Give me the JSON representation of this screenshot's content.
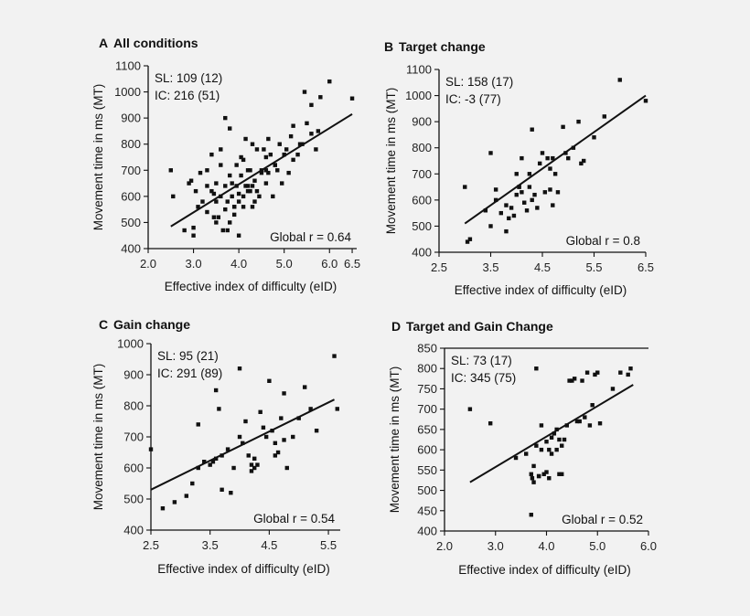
{
  "figure": {
    "y_axis_label": "Movement time in ms (MT)",
    "x_axis_label": "Effective index of difficulty (eID)"
  },
  "chart_data": [
    {
      "type": "scatter",
      "letter": "A",
      "title": "All conditions",
      "stats": [
        "SL: 109 (12)",
        "IC: 216 (51)"
      ],
      "global_r": "Global r = 0.64",
      "xlim": [
        2.0,
        6.6
      ],
      "ylim": [
        400,
        1100
      ],
      "xticks": [
        "2.0",
        "3.0",
        "4.0",
        "5.0",
        "6.0",
        "6.5"
      ],
      "xtick_values": [
        2.0,
        3.0,
        4.0,
        5.0,
        6.0,
        6.5
      ],
      "yticks": [
        400,
        500,
        600,
        700,
        800,
        900,
        1000,
        1100
      ],
      "fit": {
        "x": [
          2.5,
          6.5
        ],
        "y": [
          485,
          915
        ]
      },
      "x": [
        2.5,
        2.55,
        2.8,
        2.9,
        3.0,
        3.0,
        3.05,
        3.1,
        3.2,
        3.3,
        3.3,
        3.4,
        3.4,
        3.45,
        3.5,
        3.5,
        3.55,
        3.6,
        3.6,
        3.65,
        3.7,
        3.7,
        3.75,
        3.8,
        3.8,
        3.85,
        3.85,
        3.9,
        3.9,
        3.95,
        3.95,
        4.0,
        4.0,
        4.05,
        4.05,
        4.1,
        4.1,
        4.15,
        4.2,
        4.2,
        4.25,
        4.3,
        4.3,
        4.35,
        4.4,
        4.4,
        4.45,
        4.5,
        4.55,
        4.6,
        4.6,
        4.65,
        4.7,
        4.75,
        4.8,
        4.85,
        4.9,
        4.95,
        5.0,
        5.05,
        5.1,
        5.15,
        5.2,
        5.3,
        5.4,
        5.45,
        5.5,
        5.6,
        5.7,
        5.75,
        5.8,
        6.0,
        6.5,
        3.6,
        3.7,
        3.8,
        4.3,
        4.5,
        3.3,
        3.9,
        4.2,
        4.6,
        5.2,
        3.5,
        4.0,
        4.1,
        4.25,
        4.65,
        2.95,
        3.15,
        3.45,
        3.75,
        4.15,
        4.35,
        4.8,
        5.35,
        5.6
      ],
      "y": [
        700,
        600,
        470,
        650,
        480,
        450,
        620,
        560,
        580,
        540,
        700,
        620,
        760,
        610,
        580,
        650,
        520,
        720,
        600,
        470,
        550,
        640,
        580,
        680,
        500,
        650,
        600,
        560,
        530,
        720,
        640,
        610,
        580,
        680,
        750,
        600,
        560,
        820,
        700,
        640,
        620,
        800,
        640,
        660,
        620,
        780,
        600,
        700,
        780,
        750,
        650,
        690,
        760,
        600,
        720,
        700,
        800,
        650,
        760,
        780,
        690,
        830,
        740,
        760,
        800,
        1000,
        880,
        840,
        780,
        850,
        980,
        1040,
        975,
        780,
        900,
        860,
        560,
        690,
        640,
        560,
        620,
        700,
        870,
        500,
        450,
        740,
        700,
        820,
        660,
        690,
        520,
        470,
        640,
        580,
        720,
        800,
        950
      ]
    },
    {
      "type": "scatter",
      "letter": "B",
      "title": "Target change",
      "stats": [
        "SL: 158 (17)",
        "IC: -3 (77)"
      ],
      "global_r": "Global r = 0.8",
      "xlim": [
        2.5,
        6.5
      ],
      "ylim": [
        400,
        1100
      ],
      "xticks": [
        "2.5",
        "3.5",
        "4.5",
        "5.5",
        "6.5"
      ],
      "xtick_values": [
        2.5,
        3.5,
        4.5,
        5.5,
        6.5
      ],
      "yticks": [
        400,
        500,
        600,
        700,
        800,
        900,
        1000,
        1100
      ],
      "fit": {
        "x": [
          3.0,
          6.5
        ],
        "y": [
          510,
          1000
        ]
      },
      "x": [
        3.0,
        3.05,
        3.1,
        3.4,
        3.5,
        3.5,
        3.6,
        3.7,
        3.8,
        3.8,
        3.9,
        3.95,
        4.0,
        4.0,
        4.05,
        4.1,
        4.1,
        4.15,
        4.2,
        4.25,
        4.3,
        4.3,
        4.35,
        4.4,
        4.45,
        4.5,
        4.55,
        4.6,
        4.65,
        4.7,
        4.7,
        4.75,
        4.8,
        4.9,
        4.95,
        5.0,
        5.1,
        5.2,
        5.3,
        5.5,
        5.7,
        6.0,
        6.5,
        3.6,
        3.85,
        4.05,
        4.25,
        4.65,
        5.25
      ],
      "y": [
        650,
        440,
        450,
        560,
        780,
        500,
        640,
        550,
        580,
        480,
        570,
        540,
        700,
        620,
        650,
        760,
        630,
        590,
        560,
        650,
        600,
        870,
        620,
        570,
        740,
        780,
        630,
        760,
        640,
        580,
        760,
        700,
        630,
        880,
        780,
        760,
        800,
        900,
        750,
        840,
        920,
        1060,
        980,
        600,
        530,
        650,
        700,
        720,
        740
      ]
    },
    {
      "type": "scatter",
      "letter": "C",
      "title": "Gain change",
      "stats": [
        "SL: 95 (21)",
        "IC: 291 (89)"
      ],
      "global_r": "Global r = 0.54",
      "xlim": [
        2.5,
        5.7
      ],
      "ylim": [
        400,
        1000
      ],
      "xticks": [
        "2.5",
        "3.5",
        "4.5",
        "5.5"
      ],
      "xtick_values": [
        2.5,
        3.5,
        4.5,
        5.5
      ],
      "yticks": [
        400,
        500,
        600,
        700,
        800,
        900,
        1000
      ],
      "fit": {
        "x": [
          2.5,
          5.6
        ],
        "y": [
          530,
          820
        ]
      },
      "x": [
        2.5,
        2.7,
        2.9,
        3.1,
        3.2,
        3.3,
        3.3,
        3.4,
        3.5,
        3.6,
        3.6,
        3.65,
        3.7,
        3.7,
        3.8,
        3.85,
        3.9,
        4.0,
        4.0,
        4.05,
        4.1,
        4.15,
        4.2,
        4.2,
        4.25,
        4.3,
        4.35,
        4.4,
        4.45,
        4.5,
        4.55,
        4.6,
        4.6,
        4.65,
        4.7,
        4.75,
        4.8,
        4.9,
        5.0,
        5.1,
        5.2,
        5.3,
        5.6,
        5.65,
        3.55,
        4.25,
        4.75
      ],
      "y": [
        660,
        470,
        490,
        510,
        550,
        600,
        740,
        620,
        610,
        630,
        850,
        790,
        640,
        530,
        660,
        520,
        600,
        920,
        700,
        680,
        750,
        640,
        610,
        590,
        600,
        610,
        780,
        730,
        700,
        880,
        720,
        680,
        640,
        650,
        760,
        690,
        600,
        700,
        760,
        860,
        790,
        720,
        960,
        790,
        620,
        630,
        840
      ]
    },
    {
      "type": "scatter",
      "letter": "D",
      "title": "Target and Gain Change",
      "stats": [
        "SL: 73 (17)",
        "IC: 345 (75)"
      ],
      "global_r": "Global r = 0.52",
      "xlim": [
        2.0,
        6.0
      ],
      "ylim": [
        400,
        850
      ],
      "xticks": [
        "2.0",
        "3.0",
        "4.0",
        "5.0",
        "6.0"
      ],
      "xtick_values": [
        2.0,
        3.0,
        4.0,
        5.0,
        6.0
      ],
      "yticks": [
        400,
        450,
        500,
        550,
        600,
        650,
        700,
        750,
        800,
        850
      ],
      "fit": {
        "x": [
          2.5,
          5.7
        ],
        "y": [
          520,
          760
        ]
      },
      "x": [
        2.5,
        2.9,
        3.4,
        3.6,
        3.7,
        3.7,
        3.75,
        3.8,
        3.8,
        3.85,
        3.9,
        3.9,
        3.95,
        4.0,
        4.0,
        4.05,
        4.1,
        4.1,
        4.15,
        4.2,
        4.2,
        4.25,
        4.3,
        4.3,
        4.35,
        4.4,
        4.5,
        4.55,
        4.6,
        4.65,
        4.7,
        4.75,
        4.8,
        4.85,
        4.9,
        4.95,
        5.0,
        5.05,
        5.3,
        5.45,
        5.6,
        5.65,
        3.72,
        3.75,
        3.85,
        4.05,
        4.25,
        4.45
      ],
      "y": [
        700,
        665,
        580,
        590,
        440,
        540,
        560,
        800,
        610,
        535,
        600,
        660,
        540,
        620,
        545,
        600,
        590,
        630,
        640,
        600,
        650,
        625,
        610,
        540,
        625,
        660,
        770,
        775,
        670,
        670,
        770,
        680,
        790,
        660,
        710,
        785,
        790,
        665,
        750,
        790,
        785,
        800,
        530,
        520,
        535,
        530,
        540,
        770
      ]
    }
  ]
}
